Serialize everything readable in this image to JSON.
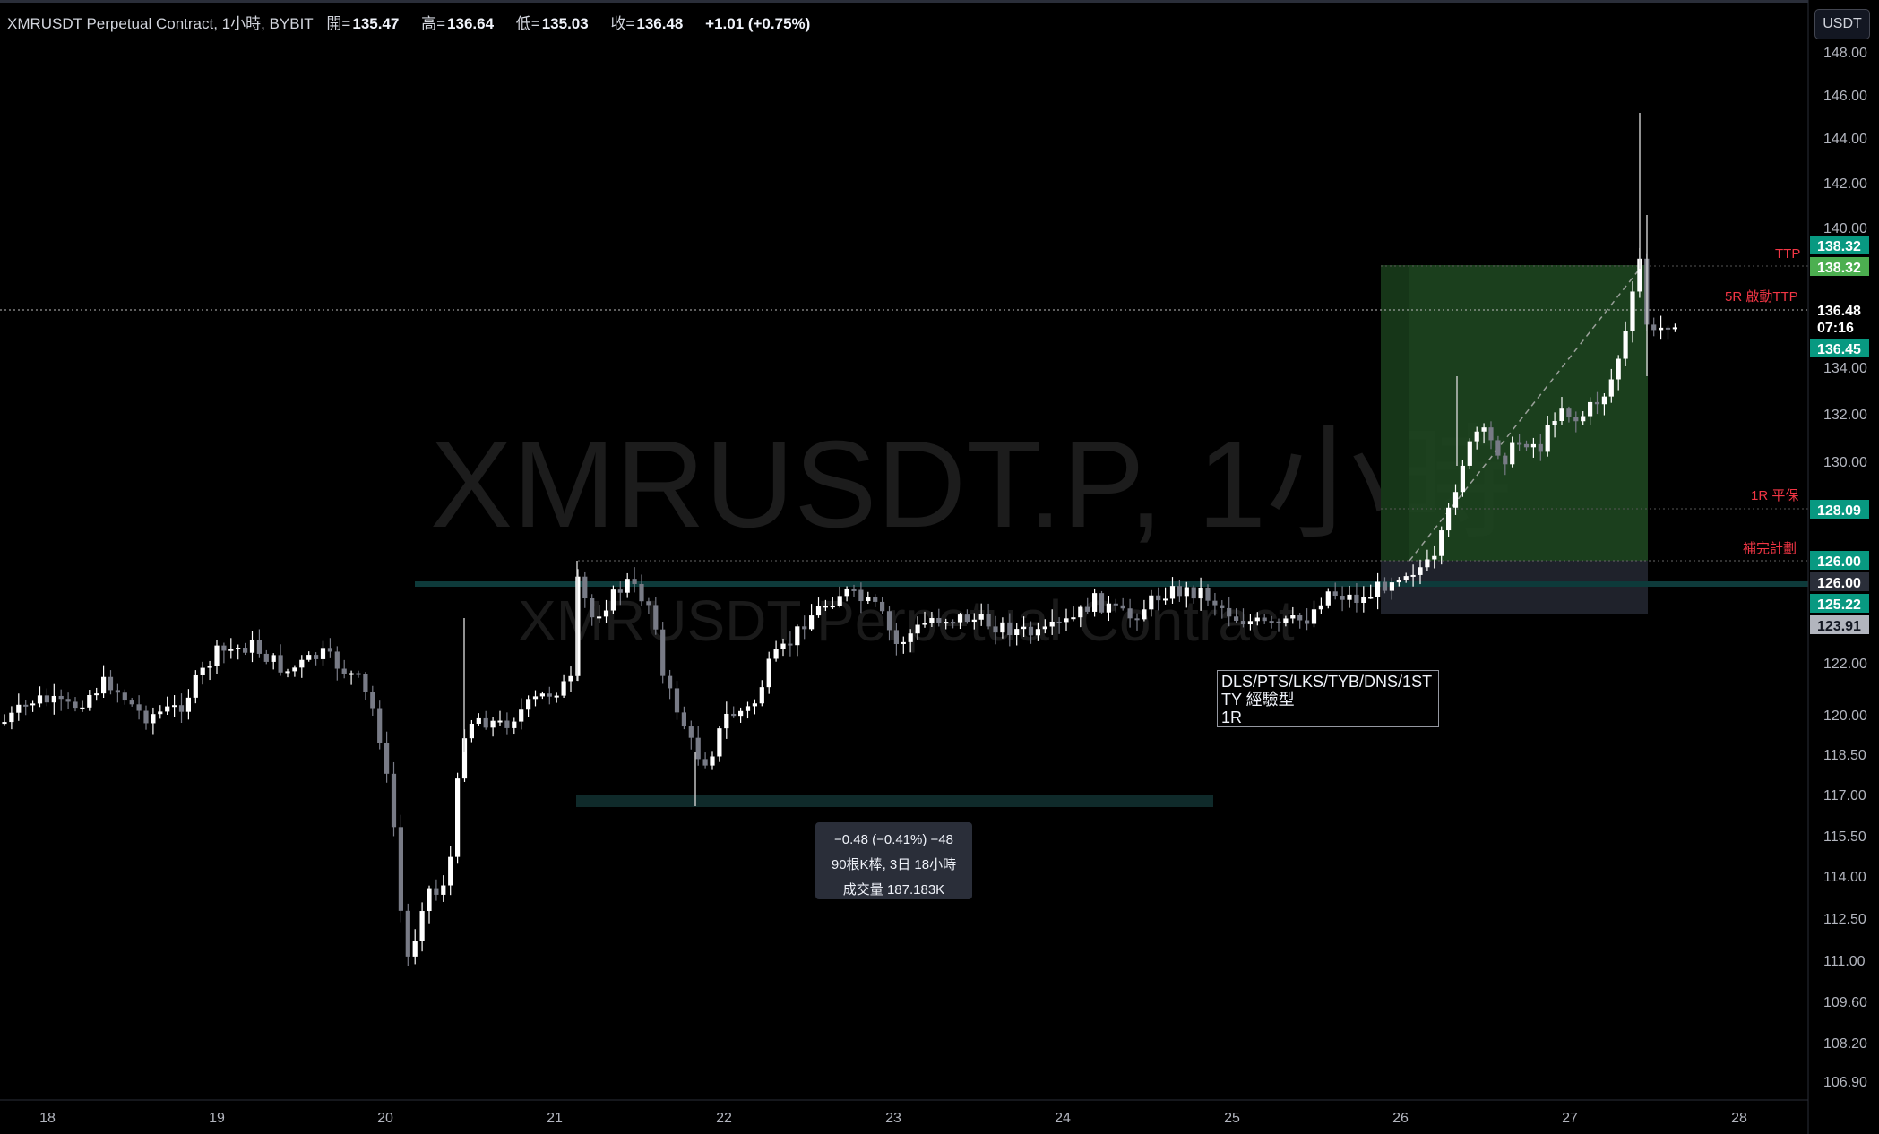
{
  "header": {
    "symbol_desc": "XMRUSDT Perpetual Contract, 1小時, BYBIT",
    "open_label": "開=",
    "open": "135.47",
    "high_label": "高=",
    "high": "136.64",
    "low_label": "低=",
    "low": "135.03",
    "close_label": "收=",
    "close": "136.48",
    "change": "+1.01 (+0.75%)"
  },
  "currency_button": "USDT",
  "watermark": {
    "title": "XMRUSDT.P, 1小時",
    "subtitle": "XMRUSDT Perpetual Contract"
  },
  "price_axis": {
    "ticks": [
      "148.00",
      "146.00",
      "144.00",
      "142.00",
      "140.00",
      "134.00",
      "132.00",
      "130.00",
      "122.00",
      "120.00",
      "118.50",
      "117.00",
      "115.50",
      "114.00",
      "112.50",
      "111.00",
      "109.60",
      "108.20",
      "106.90"
    ],
    "badges": [
      {
        "value": "138.32",
        "color": "#089981"
      },
      {
        "value": "138.32",
        "color": "#4caf50"
      },
      {
        "value": "136.48",
        "color": "#ffffff"
      },
      {
        "value": "07:16",
        "color": "#ffffff"
      },
      {
        "value": "136.45",
        "color": "#089981"
      },
      {
        "value": "128.09",
        "color": "#089981"
      },
      {
        "value": "126.00",
        "color": "#089981"
      },
      {
        "value": "126.00",
        "color": "#2a2e39"
      },
      {
        "value": "125.22",
        "color": "#089981"
      },
      {
        "value": "123.91",
        "color": "#b2b5be"
      }
    ]
  },
  "time_axis": {
    "ticks": [
      "18",
      "19",
      "20",
      "21",
      "22",
      "23",
      "24",
      "25",
      "26",
      "27",
      "28"
    ]
  },
  "annotations": {
    "ttp": "TTP",
    "ttp_5r": "5R 啟動TTP",
    "r1": "1R 平保",
    "plan": "補完計劃"
  },
  "info_box": {
    "line1": "DLS/PTS/LKS/TYB/DNS/1ST",
    "line2": "TY 經驗型",
    "line3": "1R"
  },
  "measure": {
    "line1": "−0.48 (−0.41%) −48",
    "line2": "90根K棒, 3日 18小時",
    "line3": "成交量 187.183K"
  },
  "colors": {
    "up": "#ffffff",
    "down": "#787b86",
    "profit_zone": "#1e4620",
    "loss_zone": "#2a2e39",
    "accent_teal": "#089981",
    "annotation_red": "#f23645"
  }
}
